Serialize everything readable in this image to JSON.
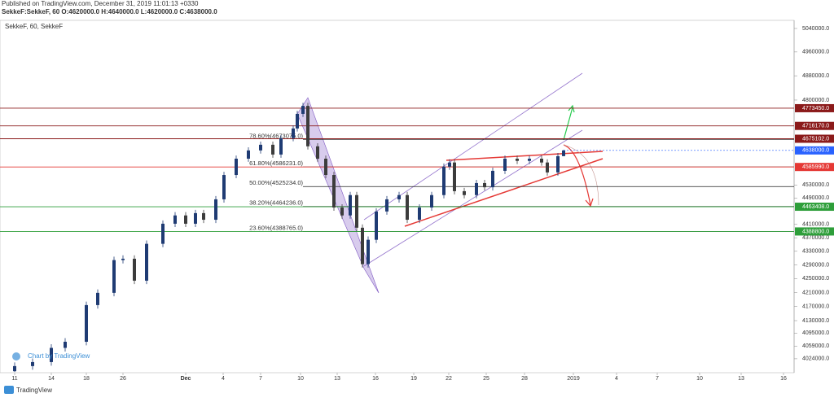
{
  "header": {
    "published": "Published on TradingView.com, December 31, 2019 11:01:13 +0330",
    "ohlc_line": "SekkeF:SekkeF, 60 O:4620000.0 H:4640000.0 L:4620000.0 C:4638000.0"
  },
  "watermark": "Chart by TradingView",
  "footer": "TradingView",
  "chart_data": {
    "type": "candlestick",
    "title": "SekkeF, 60, SekkeF",
    "up_color": "#1f3b73",
    "down_color": "#3c3c3c",
    "log_scale": true,
    "grid": false,
    "xlim": [
      0,
      195
    ],
    "ylim": [
      3986000,
      5068000
    ],
    "x": [
      3.6,
      8,
      12.6,
      16,
      21.2,
      24,
      28,
      30.2,
      33,
      36,
      40,
      43,
      45.6,
      48,
      50,
      53,
      55,
      58,
      61,
      64,
      67,
      69,
      72,
      73,
      74.4,
      75.6,
      78,
      80,
      82,
      84,
      86,
      87.6,
      89,
      90.4,
      92.4,
      95,
      98,
      100,
      103,
      106,
      109,
      110.4,
      111.6,
      114,
      117,
      119,
      121,
      124,
      127,
      130,
      133,
      134.4,
      137,
      138.4
    ],
    "open": [
      3990000,
      4004000,
      4015000,
      4054000,
      4071000,
      4174000,
      4209000,
      4304000,
      4308000,
      4244000,
      4352000,
      4412000,
      4437000,
      4412000,
      4444000,
      4424000,
      4486000,
      4561000,
      4612000,
      4638000,
      4656000,
      4625000,
      4677000,
      4708000,
      4755000,
      4781000,
      4651000,
      4612000,
      4561000,
      4461000,
      4437000,
      4499000,
      4400000,
      4292000,
      4364000,
      4449000,
      4486000,
      4499000,
      4424000,
      4461000,
      4499000,
      4587000,
      4600000,
      4511000,
      4499000,
      4536000,
      4523000,
      4574000,
      4612000,
      4605000,
      4612000,
      4600000,
      4569000,
      4620000
    ],
    "high": [
      4014000,
      4025000,
      4064000,
      4081000,
      4184000,
      4219000,
      4314000,
      4318000,
      4318000,
      4362000,
      4422000,
      4447000,
      4447000,
      4454000,
      4454000,
      4496000,
      4571000,
      4622000,
      4648000,
      4666000,
      4666000,
      4687000,
      4718000,
      4765000,
      4791000,
      4791000,
      4661000,
      4622000,
      4571000,
      4471000,
      4509000,
      4509000,
      4410000,
      4374000,
      4459000,
      4496000,
      4509000,
      4509000,
      4471000,
      4509000,
      4597000,
      4610000,
      4610000,
      4521000,
      4546000,
      4546000,
      4584000,
      4622000,
      4622000,
      4622000,
      4622000,
      4610000,
      4630000,
      4640000
    ],
    "low": [
      3988000,
      3994000,
      4005000,
      4044000,
      4061000,
      4164000,
      4199000,
      4294000,
      4234000,
      4234000,
      4342000,
      4402000,
      4402000,
      4402000,
      4414000,
      4414000,
      4476000,
      4551000,
      4602000,
      4628000,
      4615000,
      4615000,
      4667000,
      4698000,
      4745000,
      4641000,
      4602000,
      4551000,
      4451000,
      4427000,
      4427000,
      4390000,
      4282000,
      4282000,
      4354000,
      4439000,
      4476000,
      4414000,
      4414000,
      4451000,
      4489000,
      4577000,
      4501000,
      4489000,
      4489000,
      4513000,
      4513000,
      4564000,
      4595000,
      4595000,
      4590000,
      4559000,
      4559000,
      4620000
    ],
    "close": [
      4004000,
      4015000,
      4054000,
      4071000,
      4174000,
      4209000,
      4304000,
      4308000,
      4244000,
      4352000,
      4412000,
      4437000,
      4412000,
      4444000,
      4424000,
      4486000,
      4561000,
      4612000,
      4638000,
      4656000,
      4625000,
      4677000,
      4708000,
      4755000,
      4781000,
      4651000,
      4612000,
      4561000,
      4461000,
      4437000,
      4499000,
      4400000,
      4292000,
      4364000,
      4449000,
      4486000,
      4499000,
      4424000,
      4461000,
      4499000,
      4587000,
      4600000,
      4511000,
      4499000,
      4536000,
      4523000,
      4574000,
      4612000,
      4605000,
      4612000,
      4600000,
      4569000,
      4620000,
      4638000
    ],
    "yticks": [
      {
        "value": 5040000,
        "label": "5040000.0"
      },
      {
        "value": 4960000,
        "label": "4960000.0"
      },
      {
        "value": 4880000,
        "label": "4880000.0"
      },
      {
        "value": 4800000,
        "label": "4800000.0"
      },
      {
        "value": 4530000,
        "label": "4530000.0"
      },
      {
        "value": 4490000,
        "label": "4490000.0"
      },
      {
        "value": 4410000,
        "label": "4410000.0"
      },
      {
        "value": 4370000,
        "label": "4370000.0"
      },
      {
        "value": 4330000,
        "label": "4330000.0"
      },
      {
        "value": 4290000,
        "label": "4290000.0"
      },
      {
        "value": 4250000,
        "label": "4250000.0"
      },
      {
        "value": 4210000,
        "label": "4210000.0"
      },
      {
        "value": 4170000,
        "label": "4170000.0"
      },
      {
        "value": 4130000,
        "label": "4130000.0"
      },
      {
        "value": 4095000,
        "label": "4095000.0"
      },
      {
        "value": 4059000,
        "label": "4059000.0"
      },
      {
        "value": 4024000,
        "label": "4024000.0"
      }
    ],
    "xticks": [
      {
        "value": 3.6,
        "label": "11"
      },
      {
        "value": 12.6,
        "label": "14"
      },
      {
        "value": 21.2,
        "label": "18"
      },
      {
        "value": 30.2,
        "label": "26"
      },
      {
        "value": 45.6,
        "label": "Dec"
      },
      {
        "value": 54.8,
        "label": "4"
      },
      {
        "value": 64,
        "label": "7"
      },
      {
        "value": 73.8,
        "label": "10"
      },
      {
        "value": 82.8,
        "label": "13"
      },
      {
        "value": 92.2,
        "label": "16"
      },
      {
        "value": 101.6,
        "label": "19"
      },
      {
        "value": 110.2,
        "label": "22"
      },
      {
        "value": 119.4,
        "label": "25"
      },
      {
        "value": 128.8,
        "label": "28"
      },
      {
        "value": 140.8,
        "label": "2019"
      },
      {
        "value": 151.4,
        "label": "4"
      },
      {
        "value": 161.4,
        "label": "7"
      },
      {
        "value": 171.8,
        "label": "10"
      },
      {
        "value": 182,
        "label": "13"
      },
      {
        "value": 192.4,
        "label": "16"
      }
    ],
    "horizontal_lines": [
      {
        "value": 4773450,
        "label": "4773450.0",
        "color": "#8b1a1a"
      },
      {
        "value": 4716170,
        "label": "4716170.0",
        "color": "#8b1a1a"
      },
      {
        "value": 4675102,
        "label": "4675102.0",
        "color": "#8b1a1a"
      },
      {
        "value": 4585990,
        "label": "4585990.0",
        "color": "#e53935"
      },
      {
        "value": 4463408,
        "label": "4463408.0",
        "color": "#2e9e3a"
      },
      {
        "value": 4388800,
        "label": "4388800.0",
        "color": "#2e9e3a"
      }
    ],
    "last_price": {
      "value": 4638000,
      "label": "4638000.0",
      "color": "#2962ff"
    },
    "fib_levels": [
      {
        "value": 4673075,
        "label": "78.60%(4673075.0)"
      },
      {
        "value": 4586231,
        "label": "61.80%(4586231.0)"
      },
      {
        "value": 4525234,
        "label": "50.00%(4525234.0)"
      },
      {
        "value": 4464236,
        "label": "38.20%(4464236.0)"
      },
      {
        "value": 4388765,
        "label": "23.60%(4388765.0)"
      }
    ]
  }
}
